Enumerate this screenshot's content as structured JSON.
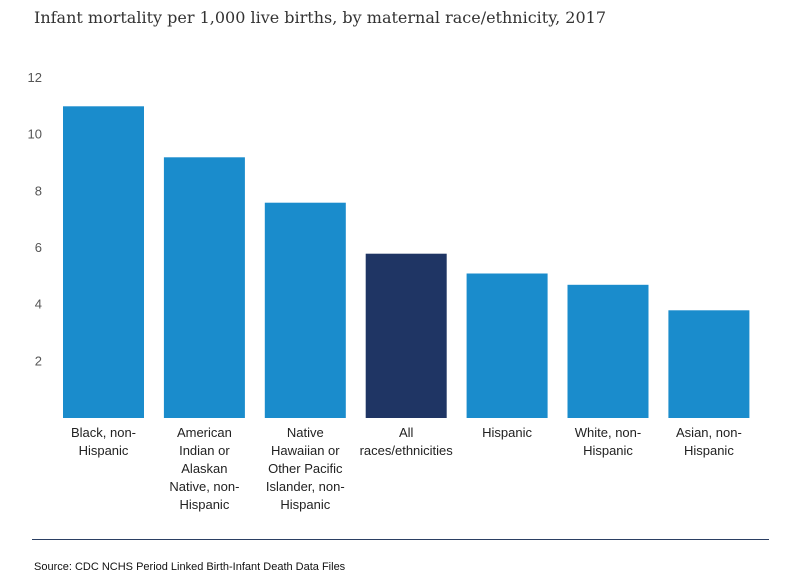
{
  "chart_data": {
    "type": "bar",
    "title": "Infant mortality per 1,000 live births, by maternal race/ethnicity, 2017",
    "categories": [
      [
        "Black, non-",
        "Hispanic"
      ],
      [
        "American",
        "Indian or",
        "Alaskan",
        "Native, non-",
        "Hispanic"
      ],
      [
        "Native",
        "Hawaiian or",
        "Other Pacific",
        "Islander, non-",
        "Hispanic"
      ],
      [
        "All",
        "races/ethnicities"
      ],
      [
        "Hispanic"
      ],
      [
        "White, non-",
        "Hispanic"
      ],
      [
        "Asian, non-",
        "Hispanic"
      ]
    ],
    "values": [
      11.0,
      9.2,
      7.6,
      5.8,
      5.1,
      4.7,
      3.8
    ],
    "highlight_index": 3,
    "colors": {
      "bar": "#1a8ccc",
      "highlight": "#1f3564",
      "tick_text": "#555555",
      "label_text": "#222222"
    },
    "ylim": [
      0,
      12
    ],
    "yticks": [
      2,
      4,
      6,
      8,
      10,
      12
    ],
    "grid": false,
    "legend": "none",
    "xlabel": "",
    "ylabel": ""
  },
  "source": "Source: CDC NCHS Period Linked Birth-Infant Death Data Files"
}
